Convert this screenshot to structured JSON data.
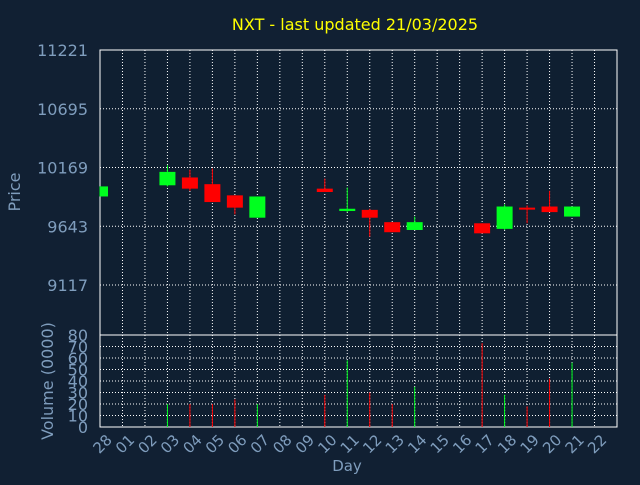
{
  "chart_data": {
    "type": "candlestick",
    "title": "NXT - last updated 21/03/2025",
    "xlabel": "Day",
    "ylabel": "Price",
    "volume_label": "Volume (0000)",
    "grid": true,
    "colors": {
      "background": "#112033",
      "plot_bg": "#0f1f31",
      "title": "#ffff00",
      "label": "#7f9dbd",
      "up": "#00ff1f",
      "down": "#ff0000",
      "grid": "#ffffff",
      "axis": "#ffffff"
    },
    "price_axis": {
      "ylim": [
        8670,
        11221
      ],
      "ticks": [
        "11221",
        "10695",
        "10169",
        "9643",
        "9117"
      ],
      "tick_values": [
        11221,
        10695,
        10169,
        9643,
        9117
      ]
    },
    "volume_axis": {
      "ylim": [
        0,
        80
      ],
      "ticks": [
        "80",
        "70",
        "60",
        "50",
        "40",
        "30",
        "20",
        "10",
        "0"
      ],
      "tick_values": [
        80,
        70,
        60,
        50,
        40,
        30,
        20,
        10,
        0
      ]
    },
    "x_ticks": [
      "28",
      "01",
      "02",
      "03",
      "04",
      "05",
      "06",
      "07",
      "08",
      "09",
      "10",
      "11",
      "12",
      "13",
      "14",
      "15",
      "16",
      "17",
      "18",
      "19",
      "20",
      "21",
      "22"
    ],
    "candles": [
      {
        "day": "28",
        "open": 9910,
        "close": 10000,
        "high": 10000,
        "low": 9910
      },
      {
        "day": "03",
        "open": 10010,
        "close": 10130,
        "high": 10190,
        "low": 10000
      },
      {
        "day": "04",
        "open": 10080,
        "close": 9980,
        "high": 10150,
        "low": 9960
      },
      {
        "day": "05",
        "open": 10020,
        "close": 9860,
        "high": 10160,
        "low": 9860
      },
      {
        "day": "06",
        "open": 9920,
        "close": 9810,
        "high": 9920,
        "low": 9750
      },
      {
        "day": "07",
        "open": 9720,
        "close": 9910,
        "high": 9910,
        "low": 9720
      },
      {
        "day": "10",
        "open": 9980,
        "close": 9950,
        "high": 10070,
        "low": 9950
      },
      {
        "day": "11",
        "open": 9780,
        "close": 9800,
        "high": 9990,
        "low": 9770
      },
      {
        "day": "12",
        "open": 9790,
        "close": 9720,
        "high": 9800,
        "low": 9550
      },
      {
        "day": "13",
        "open": 9680,
        "close": 9590,
        "high": 9680,
        "low": 9590
      },
      {
        "day": "14",
        "open": 9610,
        "close": 9680,
        "high": 9730,
        "low": 9610
      },
      {
        "day": "17",
        "open": 9670,
        "close": 9580,
        "high": 9670,
        "low": 9580
      },
      {
        "day": "18",
        "open": 9620,
        "close": 9820,
        "high": 9840,
        "low": 9610
      },
      {
        "day": "19",
        "open": 9810,
        "close": 9800,
        "high": 9830,
        "low": 9670
      },
      {
        "day": "20",
        "open": 9820,
        "close": 9770,
        "high": 9960,
        "low": 9770
      },
      {
        "day": "21",
        "open": 9730,
        "close": 9820,
        "high": 9820,
        "low": 9730
      }
    ],
    "volumes": [
      {
        "day": "03",
        "value": 20,
        "dir": "up"
      },
      {
        "day": "04",
        "value": 20,
        "dir": "down"
      },
      {
        "day": "05",
        "value": 20,
        "dir": "down"
      },
      {
        "day": "06",
        "value": 24,
        "dir": "down"
      },
      {
        "day": "07",
        "value": 20,
        "dir": "up"
      },
      {
        "day": "10",
        "value": 28,
        "dir": "down"
      },
      {
        "day": "11",
        "value": 58,
        "dir": "up"
      },
      {
        "day": "12",
        "value": 30,
        "dir": "down"
      },
      {
        "day": "13",
        "value": 20,
        "dir": "down"
      },
      {
        "day": "14",
        "value": 35,
        "dir": "up"
      },
      {
        "day": "17",
        "value": 73,
        "dir": "down"
      },
      {
        "day": "18",
        "value": 28,
        "dir": "up"
      },
      {
        "day": "19",
        "value": 18,
        "dir": "down"
      },
      {
        "day": "20",
        "value": 42,
        "dir": "down"
      },
      {
        "day": "21",
        "value": 56,
        "dir": "up"
      }
    ]
  }
}
